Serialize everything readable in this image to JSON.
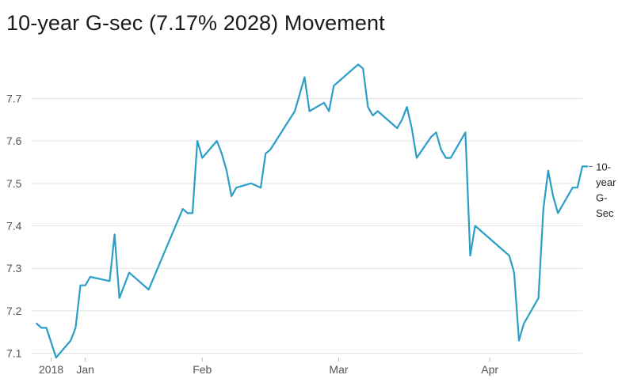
{
  "title": "10-year G-sec (7.17% 2028) Movement",
  "chart_data": {
    "type": "line",
    "title": "10-year G-sec (7.17% 2028) Movement",
    "xlabel": "",
    "ylabel": "",
    "ylim": [
      7.09,
      7.82
    ],
    "yticks": [
      7.1,
      7.2,
      7.3,
      7.4,
      7.5,
      7.6,
      7.7
    ],
    "xlim": [
      "2017-12-28",
      "2018-04-20"
    ],
    "xticks": [
      {
        "label": "2018",
        "date": "2018-01-01"
      },
      {
        "label": "Jan",
        "date": "2018-01-08"
      },
      {
        "label": "Feb",
        "date": "2018-02-01"
      },
      {
        "label": "Mar",
        "date": "2018-03-01"
      },
      {
        "label": "Apr",
        "date": "2018-04-01"
      }
    ],
    "grid": true,
    "color": "#2a9ec7",
    "series": [
      {
        "name": "10-year G-sec",
        "points": [
          [
            "2017-12-29",
            7.17
          ],
          [
            "2017-12-30",
            7.16
          ],
          [
            "2017-12-31",
            7.16
          ],
          [
            "2018-01-02",
            7.09
          ],
          [
            "2018-01-05",
            7.13
          ],
          [
            "2018-01-06",
            7.16
          ],
          [
            "2018-01-07",
            7.26
          ],
          [
            "2018-01-08",
            7.26
          ],
          [
            "2018-01-09",
            7.28
          ],
          [
            "2018-01-13",
            7.27
          ],
          [
            "2018-01-14",
            7.38
          ],
          [
            "2018-01-15",
            7.23
          ],
          [
            "2018-01-17",
            7.29
          ],
          [
            "2018-01-21",
            7.25
          ],
          [
            "2018-01-28",
            7.44
          ],
          [
            "2018-01-29",
            7.43
          ],
          [
            "2018-01-30",
            7.43
          ],
          [
            "2018-01-31",
            7.6
          ],
          [
            "2018-02-01",
            7.56
          ],
          [
            "2018-02-04",
            7.6
          ],
          [
            "2018-02-05",
            7.57
          ],
          [
            "2018-02-06",
            7.53
          ],
          [
            "2018-02-07",
            7.47
          ],
          [
            "2018-02-08",
            7.49
          ],
          [
            "2018-02-11",
            7.5
          ],
          [
            "2018-02-13",
            7.49
          ],
          [
            "2018-02-14",
            7.57
          ],
          [
            "2018-02-15",
            7.58
          ],
          [
            "2018-02-20",
            7.67
          ],
          [
            "2018-02-22",
            7.75
          ],
          [
            "2018-02-23",
            7.67
          ],
          [
            "2018-02-26",
            7.69
          ],
          [
            "2018-02-27",
            7.67
          ],
          [
            "2018-02-28",
            7.73
          ],
          [
            "2018-03-01",
            7.74
          ],
          [
            "2018-03-03",
            7.76
          ],
          [
            "2018-03-04",
            7.77
          ],
          [
            "2018-03-05",
            7.78
          ],
          [
            "2018-03-06",
            7.77
          ],
          [
            "2018-03-07",
            7.68
          ],
          [
            "2018-03-08",
            7.66
          ],
          [
            "2018-03-09",
            7.67
          ],
          [
            "2018-03-13",
            7.63
          ],
          [
            "2018-03-14",
            7.65
          ],
          [
            "2018-03-15",
            7.68
          ],
          [
            "2018-03-16",
            7.63
          ],
          [
            "2018-03-17",
            7.56
          ],
          [
            "2018-03-20",
            7.61
          ],
          [
            "2018-03-21",
            7.62
          ],
          [
            "2018-03-22",
            7.58
          ],
          [
            "2018-03-23",
            7.56
          ],
          [
            "2018-03-24",
            7.56
          ],
          [
            "2018-03-27",
            7.62
          ],
          [
            "2018-03-28",
            7.33
          ],
          [
            "2018-03-29",
            7.4
          ],
          [
            "2018-04-05",
            7.33
          ],
          [
            "2018-04-06",
            7.29
          ],
          [
            "2018-04-07",
            7.13
          ],
          [
            "2018-04-08",
            7.17
          ],
          [
            "2018-04-11",
            7.23
          ],
          [
            "2018-04-12",
            7.44
          ],
          [
            "2018-04-13",
            7.53
          ],
          [
            "2018-04-14",
            7.47
          ],
          [
            "2018-04-15",
            7.43
          ],
          [
            "2018-04-18",
            7.49
          ],
          [
            "2018-04-19",
            7.49
          ],
          [
            "2018-04-20",
            7.54
          ],
          [
            "2018-04-21",
            7.54
          ]
        ]
      }
    ],
    "end_label_lines": [
      "10-",
      "year",
      "G-",
      "Sec"
    ]
  }
}
